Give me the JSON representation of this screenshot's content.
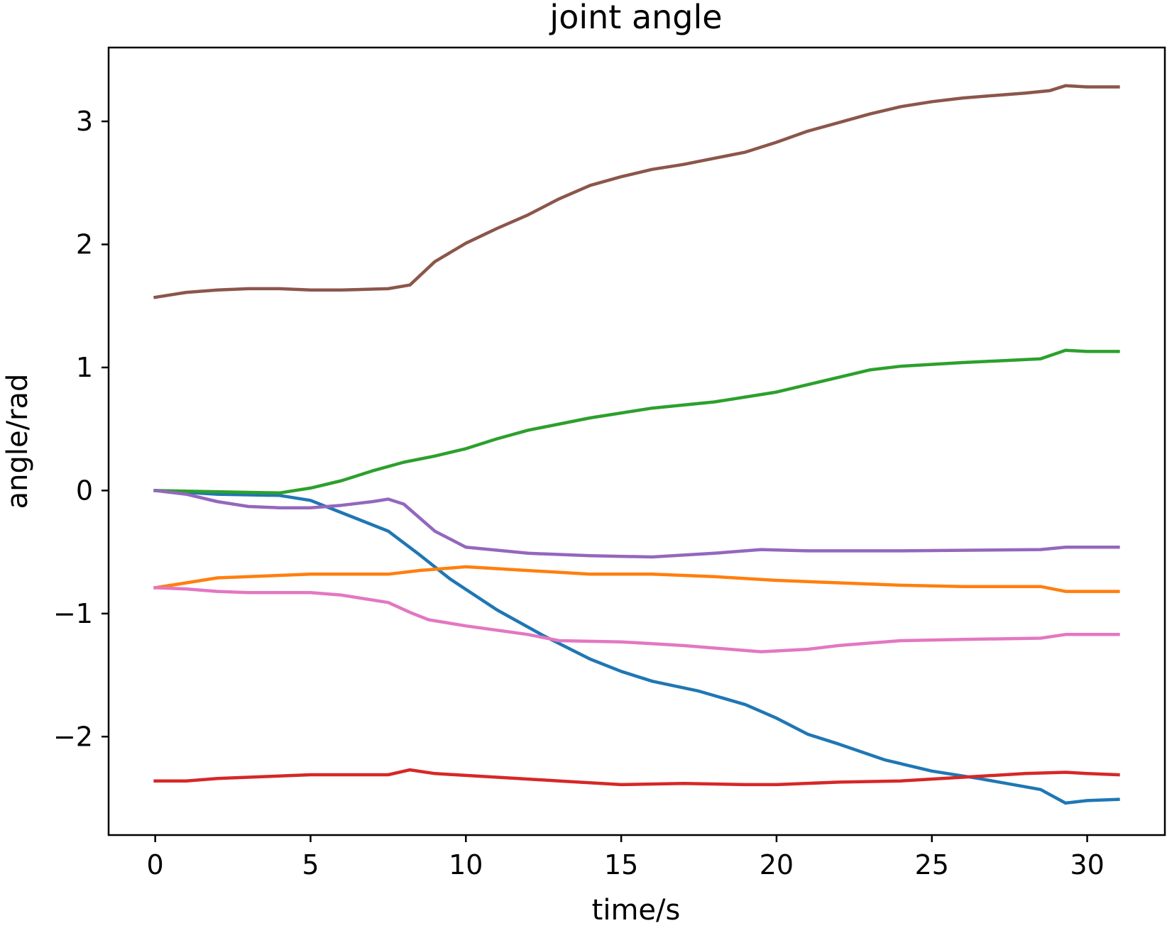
{
  "chart_data": {
    "type": "line",
    "title": "joint angle",
    "xlabel": "time/s",
    "ylabel": "angle/rad",
    "xlim": [
      -1.5,
      32.5
    ],
    "ylim": [
      -2.8,
      3.6
    ],
    "xticks": [
      0,
      5,
      10,
      15,
      20,
      25,
      30
    ],
    "yticks": [
      3,
      2,
      1,
      0,
      -1,
      -2
    ],
    "ytick_labels": [
      "3",
      "2",
      "1",
      "0",
      "−1",
      "−2"
    ],
    "grid": false,
    "legend": "none",
    "series": [
      {
        "color": "#1f77b4",
        "x": [
          0,
          2,
          4,
          5,
          6,
          7.5,
          8.5,
          9.5,
          11,
          12.5,
          14,
          15,
          16,
          17.5,
          19,
          20,
          21,
          22,
          23.5,
          25,
          26.5,
          28.5,
          29.3,
          30,
          31
        ],
        "y": [
          0.0,
          -0.03,
          -0.04,
          -0.08,
          -0.18,
          -0.33,
          -0.52,
          -0.72,
          -0.97,
          -1.18,
          -1.37,
          -1.47,
          -1.55,
          -1.63,
          -1.74,
          -1.85,
          -1.98,
          -2.06,
          -2.19,
          -2.28,
          -2.34,
          -2.43,
          -2.54,
          -2.52,
          -2.51
        ]
      },
      {
        "color": "#ff7f0e",
        "x": [
          0,
          1,
          2,
          3,
          4,
          5,
          6,
          7.5,
          8.5,
          10,
          12,
          14,
          16,
          18,
          20,
          22,
          24,
          26,
          28.5,
          29.3,
          30,
          31
        ],
        "y": [
          -0.79,
          -0.75,
          -0.71,
          -0.7,
          -0.69,
          -0.68,
          -0.68,
          -0.68,
          -0.65,
          -0.62,
          -0.65,
          -0.68,
          -0.68,
          -0.7,
          -0.73,
          -0.75,
          -0.77,
          -0.78,
          -0.78,
          -0.82,
          -0.82,
          -0.82
        ]
      },
      {
        "color": "#2ca02c",
        "x": [
          0,
          2,
          4,
          5,
          6,
          7,
          8,
          9,
          10,
          11,
          12,
          14,
          16,
          18,
          20,
          21,
          22,
          23,
          24,
          26,
          28.5,
          29.3,
          30,
          31
        ],
        "y": [
          0.0,
          -0.01,
          -0.02,
          0.02,
          0.08,
          0.16,
          0.23,
          0.28,
          0.34,
          0.42,
          0.49,
          0.59,
          0.67,
          0.72,
          0.8,
          0.86,
          0.92,
          0.98,
          1.01,
          1.04,
          1.07,
          1.14,
          1.13,
          1.13
        ]
      },
      {
        "color": "#d62728",
        "x": [
          0,
          1,
          2,
          3,
          4,
          5,
          6,
          7.5,
          8.2,
          9,
          11,
          13,
          15,
          17,
          19,
          20,
          22,
          24,
          26,
          28,
          29.3,
          30,
          31
        ],
        "y": [
          -2.36,
          -2.36,
          -2.34,
          -2.33,
          -2.32,
          -2.31,
          -2.31,
          -2.31,
          -2.27,
          -2.3,
          -2.33,
          -2.36,
          -2.39,
          -2.38,
          -2.39,
          -2.39,
          -2.37,
          -2.36,
          -2.33,
          -2.3,
          -2.29,
          -2.3,
          -2.31
        ]
      },
      {
        "color": "#9467bd",
        "x": [
          0,
          1,
          2,
          3,
          4,
          5,
          6,
          7,
          7.5,
          8,
          8.5,
          9,
          10,
          12,
          14,
          16,
          18,
          19.5,
          21,
          24,
          28.5,
          29.3,
          30,
          31
        ],
        "y": [
          0.0,
          -0.03,
          -0.09,
          -0.13,
          -0.14,
          -0.14,
          -0.12,
          -0.09,
          -0.07,
          -0.11,
          -0.22,
          -0.33,
          -0.46,
          -0.51,
          -0.53,
          -0.54,
          -0.51,
          -0.48,
          -0.49,
          -0.49,
          -0.48,
          -0.46,
          -0.46,
          -0.46
        ]
      },
      {
        "color": "#8c564b",
        "x": [
          0,
          1,
          2,
          3,
          4,
          5,
          6,
          7.5,
          8.2,
          9,
          10,
          11,
          12,
          13,
          14,
          15,
          16,
          17,
          18,
          19,
          20,
          21,
          22,
          23,
          24,
          25,
          26,
          27,
          28,
          28.8,
          29.3,
          30,
          31
        ],
        "y": [
          1.57,
          1.61,
          1.63,
          1.64,
          1.64,
          1.63,
          1.63,
          1.64,
          1.67,
          1.86,
          2.01,
          2.13,
          2.24,
          2.37,
          2.48,
          2.55,
          2.61,
          2.65,
          2.7,
          2.75,
          2.83,
          2.92,
          2.99,
          3.06,
          3.12,
          3.16,
          3.19,
          3.21,
          3.23,
          3.25,
          3.29,
          3.28,
          3.28
        ]
      },
      {
        "color": "#e377c2",
        "x": [
          0,
          1,
          2,
          3,
          4,
          5,
          6,
          7.5,
          8.2,
          8.8,
          10,
          12,
          13,
          15,
          17,
          19.5,
          21,
          22,
          23,
          24,
          26,
          28.5,
          29.3,
          30,
          31
        ],
        "y": [
          -0.79,
          -0.8,
          -0.82,
          -0.83,
          -0.83,
          -0.83,
          -0.85,
          -0.91,
          -0.99,
          -1.05,
          -1.1,
          -1.17,
          -1.22,
          -1.23,
          -1.26,
          -1.31,
          -1.29,
          -1.26,
          -1.24,
          -1.22,
          -1.21,
          -1.2,
          -1.17,
          -1.17,
          -1.17
        ]
      }
    ]
  }
}
